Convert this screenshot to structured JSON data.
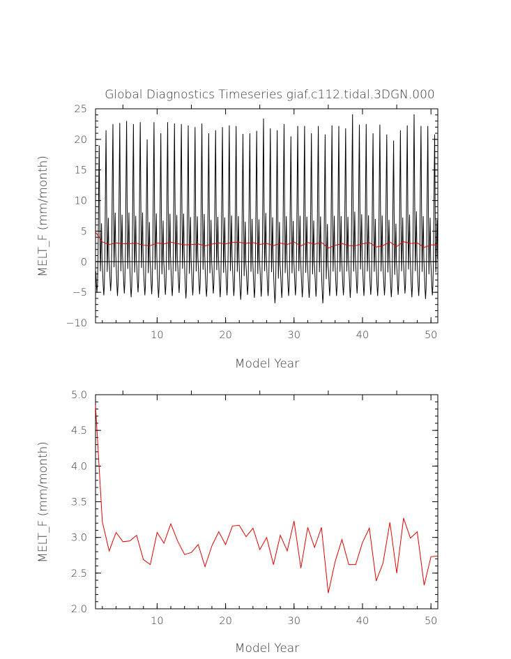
{
  "chart_data": [
    {
      "type": "line",
      "title": "Global Diagnostics Timeseries giaf.c112.tidal.3DGN.000",
      "xlabel": "Model Year",
      "ylabel": "MELT_F (mm/month)",
      "xlim": [
        1,
        51
      ],
      "ylim": [
        -10,
        25
      ],
      "xticks": [
        10,
        20,
        30,
        40,
        50
      ],
      "yticks": [
        -10,
        -5,
        0,
        5,
        10,
        15,
        20,
        25
      ],
      "xtick_labels": [
        "10",
        "20",
        "30",
        "40",
        "50"
      ],
      "ytick_labels": [
        "−10",
        "−5",
        "0",
        "5",
        "10",
        "15",
        "20",
        "25"
      ],
      "zero_line": true,
      "series": [
        {
          "color": "#000000",
          "monthly_pattern": [
            -1,
            -3,
            -4.5,
            -3,
            2,
            12,
            20,
            8,
            -1,
            3,
            7,
            1
          ],
          "annual_peaks": [
            19,
            21.5,
            22.5,
            22.7,
            23,
            22.5,
            22.8,
            20,
            22.8,
            21,
            22.8,
            22.6,
            22.5,
            22.3,
            22,
            22.6,
            21,
            21.5,
            22,
            22.3,
            22.2,
            20.9,
            21,
            21.4,
            23.4,
            21.8,
            21.5,
            22.5,
            20.5,
            22.2,
            22.2,
            21,
            22.2,
            20.8,
            22.3,
            22.2,
            21.8,
            24.1,
            22.4,
            22.5,
            21,
            22.4,
            20.8,
            19.8,
            21.5,
            22.3,
            24.1,
            22.2,
            22.2,
            20.8
          ],
          "annual_troughs": [
            -5,
            -5.5,
            -4.8,
            -5.6,
            -5.2,
            -5.8,
            -5,
            -5.5,
            -5.3,
            -5.9,
            -5.4,
            -5.6,
            -5.1,
            -6,
            -5.5,
            -5.3,
            -5.7,
            -5.2,
            -5.8,
            -5.5,
            -5.6,
            -6.2,
            -5.4,
            -5.9,
            -5.7,
            -5.6,
            -6.8,
            -5.9,
            -5.6,
            -5.5,
            -5.8,
            -5.9,
            -5.7,
            -6.8,
            -5.6,
            -5.6,
            -5.5,
            -5.9,
            -5.2,
            -5.6,
            -5.4,
            -5.6,
            -5.5,
            -5.8,
            -5.4,
            -5.2,
            -5.8,
            -5.6,
            -6.1,
            -5.5
          ]
        },
        {
          "color": "#e00000",
          "x": [
            1,
            2,
            3,
            4,
            5,
            6,
            7,
            8,
            9,
            10,
            11,
            12,
            13,
            14,
            15,
            16,
            17,
            18,
            19,
            20,
            21,
            22,
            23,
            24,
            25,
            26,
            27,
            28,
            29,
            30,
            31,
            32,
            33,
            34,
            35,
            36,
            37,
            38,
            39,
            40,
            41,
            42,
            43,
            44,
            45,
            46,
            47,
            48,
            49,
            50,
            51
          ],
          "values": [
            4.85,
            3.22,
            2.81,
            3.07,
            2.94,
            2.95,
            3.03,
            2.69,
            2.62,
            3.07,
            2.92,
            3.19,
            2.95,
            2.76,
            2.79,
            2.9,
            2.59,
            2.88,
            3.08,
            2.9,
            3.16,
            3.17,
            3.01,
            3.13,
            2.83,
            3.0,
            2.62,
            3.03,
            2.81,
            3.23,
            2.57,
            3.14,
            2.86,
            3.14,
            2.22,
            2.66,
            2.97,
            2.62,
            2.62,
            2.93,
            3.13,
            2.39,
            2.64,
            3.21,
            2.5,
            3.27,
            2.99,
            3.08,
            2.33,
            2.73,
            2.74
          ]
        }
      ]
    },
    {
      "type": "line",
      "title": "",
      "xlabel": "Model Year",
      "ylabel": "MELT_F (mm/month)",
      "xlim": [
        1,
        51
      ],
      "ylim": [
        2.0,
        5.0
      ],
      "xticks": [
        10,
        20,
        30,
        40,
        50
      ],
      "yticks": [
        2.0,
        2.5,
        3.0,
        3.5,
        4.0,
        4.5,
        5.0
      ],
      "xtick_labels": [
        "10",
        "20",
        "30",
        "40",
        "50"
      ],
      "ytick_labels": [
        "2.0",
        "2.5",
        "3.0",
        "3.5",
        "4.0",
        "4.5",
        "5.0"
      ],
      "series": [
        {
          "color": "#e00000",
          "x": [
            1,
            2,
            3,
            4,
            5,
            6,
            7,
            8,
            9,
            10,
            11,
            12,
            13,
            14,
            15,
            16,
            17,
            18,
            19,
            20,
            21,
            22,
            23,
            24,
            25,
            26,
            27,
            28,
            29,
            30,
            31,
            32,
            33,
            34,
            35,
            36,
            37,
            38,
            39,
            40,
            41,
            42,
            43,
            44,
            45,
            46,
            47,
            48,
            49,
            50,
            51
          ],
          "values": [
            4.85,
            3.22,
            2.81,
            3.07,
            2.94,
            2.95,
            3.03,
            2.69,
            2.62,
            3.07,
            2.92,
            3.19,
            2.95,
            2.76,
            2.79,
            2.9,
            2.59,
            2.88,
            3.08,
            2.9,
            3.16,
            3.17,
            3.01,
            3.13,
            2.83,
            3.0,
            2.62,
            3.03,
            2.81,
            3.23,
            2.57,
            3.14,
            2.86,
            3.14,
            2.22,
            2.66,
            2.97,
            2.62,
            2.62,
            2.93,
            3.13,
            2.39,
            2.64,
            3.21,
            2.5,
            3.27,
            2.99,
            3.08,
            2.33,
            2.73,
            2.74
          ]
        }
      ]
    }
  ]
}
